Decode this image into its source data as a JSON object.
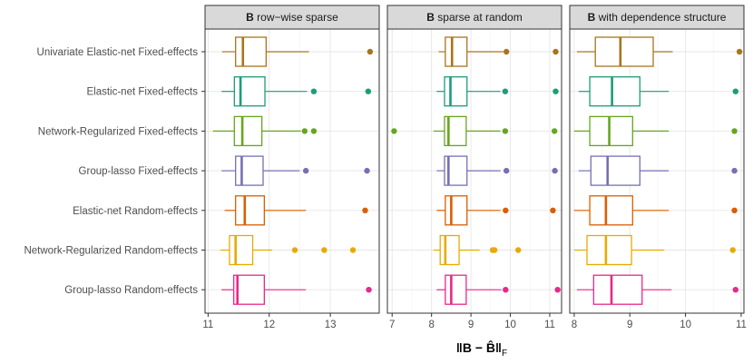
{
  "chart_data": {
    "type": "boxplot",
    "x_axis_label": "||B − B̂||F",
    "colors": {
      "Univariate Elastic-net Fixed-effects": "#a6761d",
      "Elastic-net Fixed-effects": "#1b9e77",
      "Network-Regularized Fixed-effects": "#66a61e",
      "Group-lasso Fixed-effects": "#7570b3",
      "Elastic-net Random-effects": "#d95f02",
      "Network-Regularized Random-effects": "#e6ab02",
      "Group-lasso Random-effects": "#e7298a"
    },
    "methods": [
      "Univariate Elastic-net Fixed-effects",
      "Elastic-net Fixed-effects",
      "Network-Regularized Fixed-effects",
      "Group-lasso Fixed-effects",
      "Elastic-net Random-effects",
      "Network-Regularized Random-effects",
      "Group-lasso Random-effects"
    ],
    "panels": [
      {
        "bold": "B",
        "title": " row−wise sparse",
        "xlim": [
          10.95,
          13.8
        ],
        "xticks": [
          11,
          12,
          13
        ],
        "boxes": [
          {
            "whisker_low": 11.23,
            "q1": 11.45,
            "median": 11.57,
            "q3": 11.95,
            "whisker_high": 12.65,
            "outliers": [
              13.65
            ]
          },
          {
            "whisker_low": 11.22,
            "q1": 11.43,
            "median": 11.53,
            "q3": 11.93,
            "whisker_high": 12.62,
            "outliers": [
              12.73,
              13.62
            ]
          },
          {
            "whisker_low": 11.08,
            "q1": 11.43,
            "median": 11.56,
            "q3": 11.88,
            "whisker_high": 12.52,
            "outliers": [
              12.58,
              12.73
            ]
          },
          {
            "whisker_low": 11.22,
            "q1": 11.45,
            "median": 11.55,
            "q3": 11.9,
            "whisker_high": 12.5,
            "outliers": [
              12.6,
              13.6
            ]
          },
          {
            "whisker_low": 11.27,
            "q1": 11.45,
            "median": 11.6,
            "q3": 11.92,
            "whisker_high": 12.6,
            "outliers": [
              13.57
            ]
          },
          {
            "whisker_low": 11.2,
            "q1": 11.35,
            "median": 11.45,
            "q3": 11.73,
            "whisker_high": 12.05,
            "outliers": [
              12.42,
              12.9,
              13.37
            ]
          },
          {
            "whisker_low": 11.22,
            "q1": 11.42,
            "median": 11.48,
            "q3": 11.92,
            "whisker_high": 12.6,
            "outliers": [
              13.63
            ]
          }
        ]
      },
      {
        "bold": "B",
        "title": " sparse at random",
        "xlim": [
          6.88,
          11.3
        ],
        "xticks": [
          7,
          8,
          9,
          10,
          11
        ],
        "boxes": [
          {
            "whisker_low": 8.18,
            "q1": 8.35,
            "median": 8.52,
            "q3": 8.9,
            "whisker_high": 9.82,
            "outliers": [
              9.9,
              11.15
            ]
          },
          {
            "whisker_low": 8.13,
            "q1": 8.33,
            "median": 8.48,
            "q3": 8.9,
            "whisker_high": 9.75,
            "outliers": [
              9.87,
              11.15
            ]
          },
          {
            "whisker_low": 8.05,
            "q1": 8.33,
            "median": 8.43,
            "q3": 8.88,
            "whisker_high": 9.75,
            "outliers": [
              7.05,
              9.87,
              11.12
            ]
          },
          {
            "whisker_low": 8.13,
            "q1": 8.33,
            "median": 8.43,
            "q3": 8.9,
            "whisker_high": 9.75,
            "outliers": [
              9.9,
              11.13
            ]
          },
          {
            "whisker_low": 8.13,
            "q1": 8.35,
            "median": 8.5,
            "q3": 8.9,
            "whisker_high": 9.75,
            "outliers": [
              9.88,
              11.08
            ]
          },
          {
            "whisker_low": 8.05,
            "q1": 8.22,
            "median": 8.35,
            "q3": 8.7,
            "whisker_high": 9.22,
            "outliers": [
              9.55,
              9.6,
              10.2
            ]
          },
          {
            "whisker_low": 8.13,
            "q1": 8.35,
            "median": 8.5,
            "q3": 8.88,
            "whisker_high": 9.77,
            "outliers": [
              9.88,
              11.2
            ]
          }
        ]
      },
      {
        "bold": "B",
        "title": " with dependence structure",
        "xlim": [
          7.92,
          11.05
        ],
        "xticks": [
          8,
          9,
          10,
          11
        ],
        "boxes": [
          {
            "whisker_low": 8.05,
            "q1": 8.38,
            "median": 8.83,
            "q3": 9.42,
            "whisker_high": 9.77,
            "outliers": [
              10.97
            ]
          },
          {
            "whisker_low": 8.08,
            "q1": 8.28,
            "median": 8.68,
            "q3": 9.18,
            "whisker_high": 9.7,
            "outliers": [
              10.9
            ]
          },
          {
            "whisker_low": 8.0,
            "q1": 8.28,
            "median": 8.63,
            "q3": 9.05,
            "whisker_high": 9.7,
            "outliers": [
              10.88
            ]
          },
          {
            "whisker_low": 8.08,
            "q1": 8.3,
            "median": 8.6,
            "q3": 9.18,
            "whisker_high": 9.7,
            "outliers": [
              10.88
            ]
          },
          {
            "whisker_low": 8.0,
            "q1": 8.28,
            "median": 8.57,
            "q3": 9.05,
            "whisker_high": 9.7,
            "outliers": [
              10.88
            ]
          },
          {
            "whisker_low": 8.0,
            "q1": 8.23,
            "median": 8.57,
            "q3": 9.03,
            "whisker_high": 9.62,
            "outliers": [
              10.85
            ]
          },
          {
            "whisker_low": 8.05,
            "q1": 8.35,
            "median": 8.67,
            "q3": 9.22,
            "whisker_high": 9.75,
            "outliers": [
              10.9
            ]
          }
        ]
      }
    ]
  }
}
